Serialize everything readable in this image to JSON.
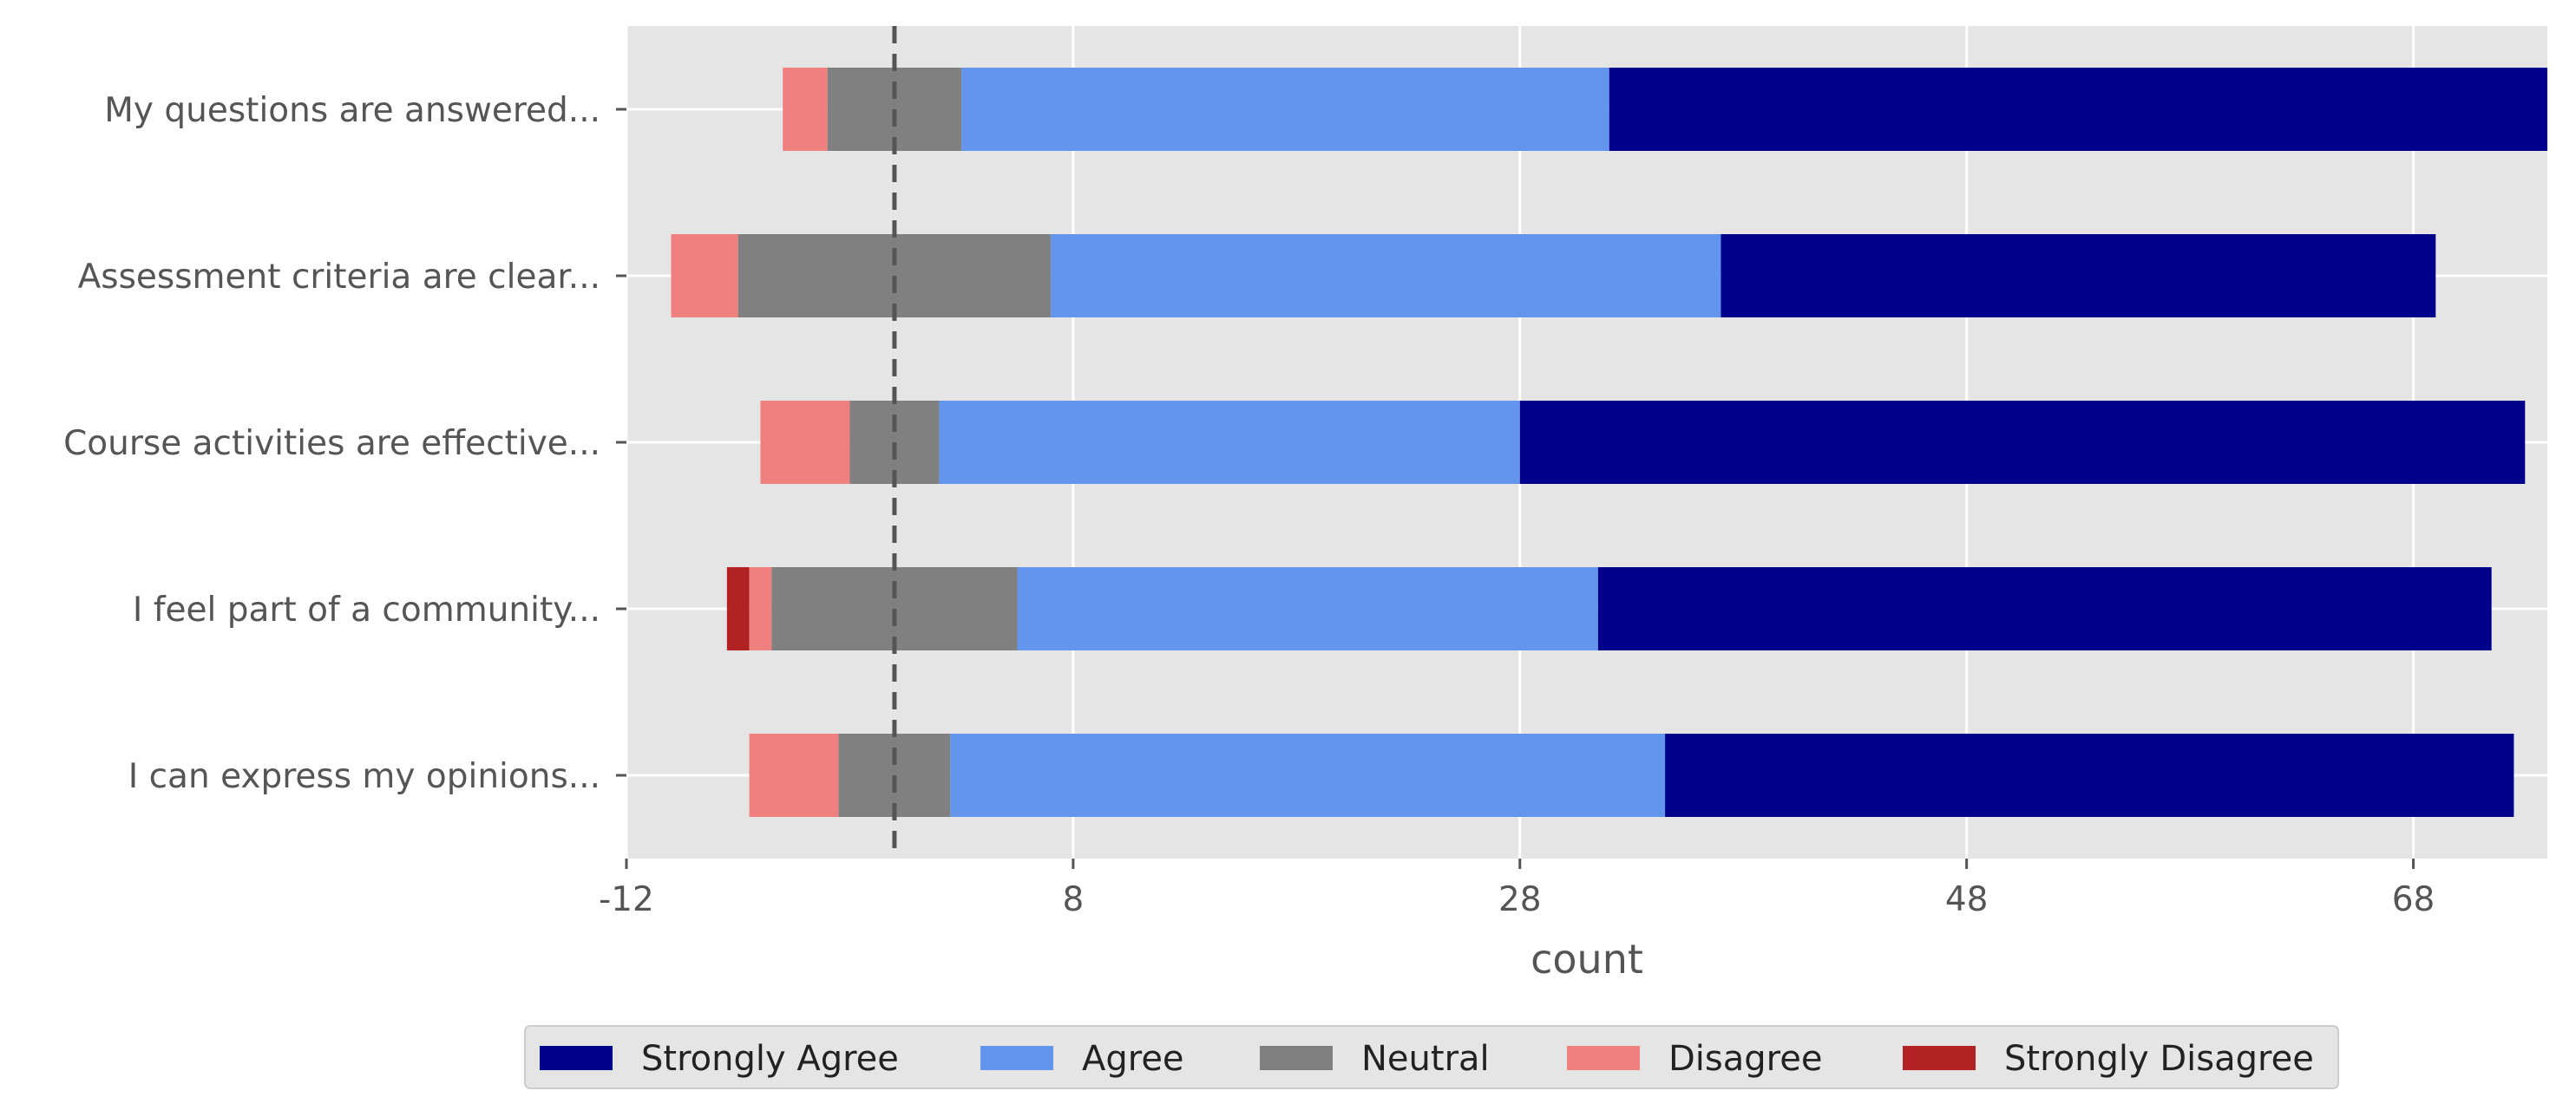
{
  "chart_data": {
    "type": "bar",
    "orientation": "horizontal",
    "stacked": true,
    "diverging": true,
    "categories": [
      "My questions are answered...",
      "Assessment criteria are clear...",
      "Course activities are effective...",
      "I feel part of a community...",
      "I can express my opinions..."
    ],
    "series": [
      {
        "name": "Strongly Disagree",
        "color": "#b22222",
        "values": [
          0,
          0,
          0,
          1,
          0
        ]
      },
      {
        "name": "Disagree",
        "color": "#f08080",
        "values": [
          2,
          3,
          4,
          1,
          4
        ]
      },
      {
        "name": "Neutral",
        "color": "#808080",
        "values": [
          6,
          14,
          4,
          11,
          5
        ]
      },
      {
        "name": "Agree",
        "color": "#6495ed",
        "values": [
          29,
          30,
          26,
          26,
          32
        ]
      },
      {
        "name": "Strongly Agree",
        "color": "#00008b",
        "values": [
          42,
          32,
          45,
          40,
          38
        ]
      }
    ],
    "left_edges": [
      -5,
      -10,
      -6,
      -7.5,
      -6.5
    ],
    "reference_line_x": 0,
    "xlim": [
      -12,
      74
    ],
    "xticks": [
      -12,
      8,
      28,
      48,
      68
    ],
    "xlabel": "count",
    "ylabel": "",
    "title": "",
    "grid": true,
    "legend_position": "bottom-center",
    "legend_order": [
      "Strongly Agree",
      "Agree",
      "Neutral",
      "Disagree",
      "Strongly Disagree"
    ]
  }
}
